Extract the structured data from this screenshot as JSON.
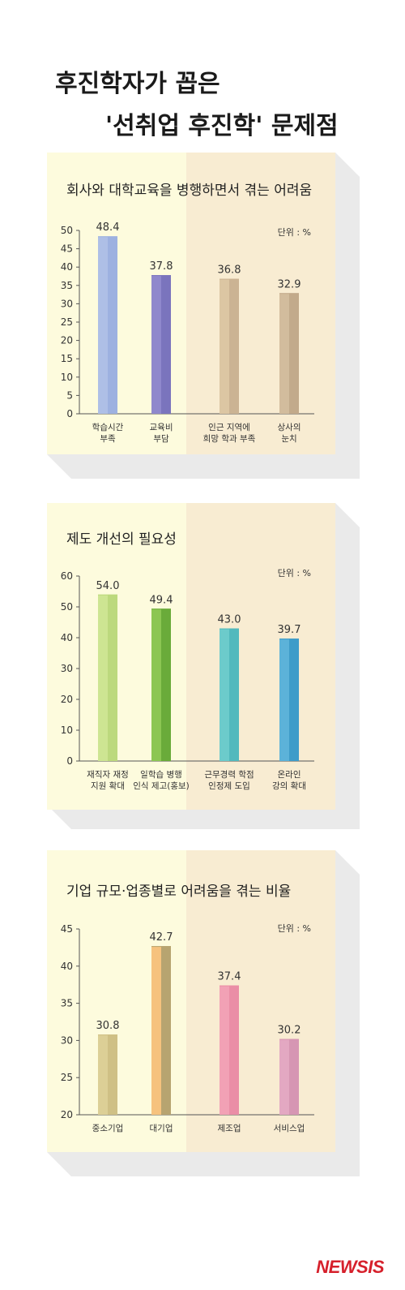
{
  "header": {
    "title_line1": "후진학자가 꼽은",
    "title_line2": "'선취업 후진학' 문제점"
  },
  "logo": "NEWSIS",
  "chart_data": [
    {
      "type": "bar",
      "title": "회사와 대학교육을 병행하면서 겪는 어려움",
      "unit": "단위 : %",
      "categories": [
        [
          "학습시간",
          "부족"
        ],
        [
          "교육비",
          "부담"
        ],
        [
          "인근 지역에",
          "희망 학과 부족"
        ],
        [
          "상사의",
          "눈치"
        ]
      ],
      "values": [
        48.4,
        37.8,
        36.8,
        32.9
      ],
      "value_labels": [
        "48.4",
        "37.8",
        "36.8",
        "32.9"
      ],
      "ylim": [
        0,
        50
      ],
      "yticks": [
        0,
        5,
        10,
        15,
        20,
        25,
        30,
        35,
        40,
        45,
        50
      ],
      "colors": [
        [
          "#aebfe6",
          "#9db1e0"
        ],
        [
          "#8f88cc",
          "#7a74bd"
        ],
        [
          "#dcc6a3",
          "#cbb393"
        ],
        [
          "#d2bc9d",
          "#c2aa8b"
        ]
      ]
    },
    {
      "type": "bar",
      "title": "제도 개선의 필요성",
      "unit": "단위 : %",
      "categories": [
        [
          "재직자 재정",
          "지원 확대"
        ],
        [
          "일학습 병행",
          "인식 제고(홍보)"
        ],
        [
          "근무경력 학점",
          "인정제 도입"
        ],
        [
          "온라인",
          "강의 확대"
        ]
      ],
      "values": [
        54.0,
        49.4,
        43.0,
        39.7
      ],
      "value_labels": [
        "54.0",
        "49.4",
        "43.0",
        "39.7"
      ],
      "ylim": [
        0,
        60
      ],
      "yticks": [
        0,
        10,
        20,
        30,
        40,
        50,
        60
      ],
      "colors": [
        [
          "#cde592",
          "#bcd97d"
        ],
        [
          "#8cc653",
          "#6aab3a"
        ],
        [
          "#6ccbcb",
          "#52b9bd"
        ],
        [
          "#5cb2d9",
          "#3e9cc9"
        ]
      ]
    },
    {
      "type": "bar",
      "title": "기업 규모·업종별로 어려움을 겪는 비율",
      "unit": "단위 : %",
      "categories": [
        [
          "중소기업"
        ],
        [
          "대기업"
        ],
        [
          "제조업"
        ],
        [
          "서비스업"
        ]
      ],
      "values": [
        30.8,
        42.7,
        37.4,
        30.2
      ],
      "value_labels": [
        "30.8",
        "42.7",
        "37.4",
        "30.2"
      ],
      "ylim": [
        20,
        45
      ],
      "yticks": [
        20,
        25,
        30,
        35,
        40,
        45
      ],
      "colors": [
        [
          "#dccf96",
          "#cfc085"
        ],
        [
          "#f6c27e",
          "#b7a470"
        ],
        [
          "#f2a1b5",
          "#ea8ea6"
        ],
        [
          "#e3a8c2",
          "#d696b3"
        ]
      ]
    }
  ]
}
